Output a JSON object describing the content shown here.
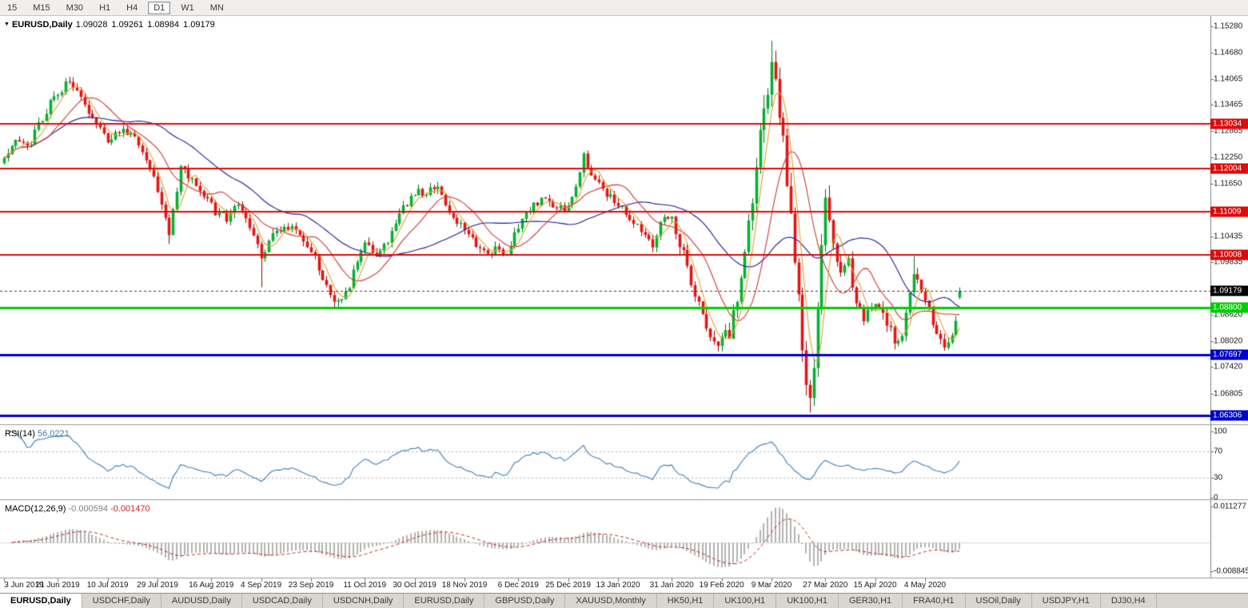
{
  "ui": {
    "toolbar": {
      "items": [
        "15",
        "M15",
        "M30",
        "H1",
        "H4",
        "D1",
        "W1",
        "MN"
      ],
      "active_index": 5
    },
    "tabs": {
      "items": [
        "EURUSD,Daily",
        "USDCHF,Daily",
        "AUDUSD,Daily",
        "USDCAD,Daily",
        "USDCNH,Daily",
        "EURUSD,Daily",
        "GBPUSD,Daily",
        "XAUUSD,Monthly",
        "HK50,H1",
        "UK100,H1",
        "UK100,H1",
        "GER30,H1",
        "FRA40,H1",
        "USOil,Daily",
        "USDJPY,H1",
        "DJ30,H4"
      ],
      "active_index": 0
    }
  },
  "chart_data": {
    "type": "candlestick",
    "title": {
      "marker": "▼",
      "symbol": "EURUSD,Daily",
      "open": "1.09028",
      "high": "1.09261",
      "low": "1.08984",
      "close": "1.09179"
    },
    "main_price_range": {
      "top": 1.1552,
      "bottom": 1.06102
    },
    "y_axis_labels": [
      "1.15280",
      "1.14680",
      "1.14065",
      "1.13465",
      "1.12865",
      "1.12250",
      "1.11650",
      "1.10435",
      "1.09835",
      "1.08620",
      "1.08020",
      "1.07420",
      "1.06805"
    ],
    "x_axis_labels": [
      {
        "bar": 0,
        "label": "3 Jun 2019"
      },
      {
        "bar": 14,
        "label": "21 Jun 2019"
      },
      {
        "bar": 27,
        "label": "10 Jul 2019"
      },
      {
        "bar": 40,
        "label": "29 Jul 2019"
      },
      {
        "bar": 54,
        "label": "16 Aug 2019"
      },
      {
        "bar": 67,
        "label": "4 Sep 2019"
      },
      {
        "bar": 80,
        "label": "23 Sep 2019"
      },
      {
        "bar": 94,
        "label": "11 Oct 2019"
      },
      {
        "bar": 107,
        "label": "30 Oct 2019"
      },
      {
        "bar": 120,
        "label": "18 Nov 2019"
      },
      {
        "bar": 134,
        "label": "6 Dec 2019"
      },
      {
        "bar": 147,
        "label": "25 Dec 2019"
      },
      {
        "bar": 160,
        "label": "13 Jan 2020"
      },
      {
        "bar": 174,
        "label": "31 Jan 2020"
      },
      {
        "bar": 187,
        "label": "19 Feb 2020"
      },
      {
        "bar": 200,
        "label": "9 Mar 2020"
      },
      {
        "bar": 214,
        "label": "27 Mar 2020"
      },
      {
        "bar": 227,
        "label": "15 Apr 2020"
      },
      {
        "bar": 240,
        "label": "4 May 2020"
      }
    ],
    "price_levels": [
      {
        "price": 1.13034,
        "label": "1.13034",
        "color": "#dd0b0b",
        "thickness": 2
      },
      {
        "price": 1.12004,
        "label": "1.12004",
        "color": "#dd0b0b",
        "thickness": 2
      },
      {
        "price": 1.11009,
        "label": "1.11009",
        "color": "#dd0b0b",
        "thickness": 2
      },
      {
        "price": 1.10008,
        "label": "1.10008",
        "color": "#dd0b0b",
        "thickness": 2
      },
      {
        "price": 1.088,
        "label": "1.08800",
        "color": "#00ce00",
        "thickness": 3
      },
      {
        "price": 1.07697,
        "label": "1.07697",
        "color": "#0000cc",
        "thickness": 3
      },
      {
        "price": 1.06306,
        "label": "1.06306",
        "color": "#0000cc",
        "thickness": 3
      }
    ],
    "current_price": {
      "price": 1.09179,
      "label": "1.09179",
      "color": "#000000"
    },
    "colors": {
      "up": "#00b22d",
      "up_border": "#00701c",
      "down": "#e81212",
      "down_border": "#8f0808"
    },
    "candles": {
      "count": 250,
      "seed": 13,
      "noise": 0.0011,
      "wick": 0.0012,
      "anchors": [
        [
          0,
          1.1228
        ],
        [
          3,
          1.1262
        ],
        [
          6,
          1.1248
        ],
        [
          9,
          1.1298
        ],
        [
          13,
          1.1372
        ],
        [
          17,
          1.14
        ],
        [
          20,
          1.1368
        ],
        [
          23,
          1.1322
        ],
        [
          27,
          1.127
        ],
        [
          30,
          1.1288
        ],
        [
          33,
          1.1282
        ],
        [
          36,
          1.124
        ],
        [
          40,
          1.1152
        ],
        [
          43,
          1.1048
        ],
        [
          46,
          1.1202
        ],
        [
          49,
          1.1172
        ],
        [
          52,
          1.1138
        ],
        [
          55,
          1.1098
        ],
        [
          58,
          1.1088
        ],
        [
          61,
          1.1118
        ],
        [
          64,
          1.1062
        ],
        [
          67,
          1.0992
        ],
        [
          70,
          1.1042
        ],
        [
          73,
          1.1072
        ],
        [
          76,
          1.1058
        ],
        [
          80,
          1.1012
        ],
        [
          83,
          1.0942
        ],
        [
          87,
          1.0888
        ],
        [
          90,
          1.0932
        ],
        [
          94,
          1.1032
        ],
        [
          97,
          1.1008
        ],
        [
          100,
          1.1038
        ],
        [
          103,
          1.1092
        ],
        [
          107,
          1.1148
        ],
        [
          110,
          1.1138
        ],
        [
          113,
          1.1162
        ],
        [
          116,
          1.1108
        ],
        [
          120,
          1.1058
        ],
        [
          123,
          1.1018
        ],
        [
          126,
          1.1008
        ],
        [
          129,
          1.1022
        ],
        [
          131,
          1.0998
        ],
        [
          134,
          1.1068
        ],
        [
          137,
          1.1102
        ],
        [
          140,
          1.1132
        ],
        [
          143,
          1.1118
        ],
        [
          147,
          1.1108
        ],
        [
          151,
          1.1228
        ],
        [
          154,
          1.1172
        ],
        [
          157,
          1.1142
        ],
        [
          160,
          1.1122
        ],
        [
          163,
          1.1088
        ],
        [
          166,
          1.1058
        ],
        [
          169,
          1.1028
        ],
        [
          172,
          1.1092
        ],
        [
          174,
          1.1082
        ],
        [
          177,
          1.1002
        ],
        [
          180,
          1.0908
        ],
        [
          183,
          1.0838
        ],
        [
          187,
          1.0798
        ],
        [
          189,
          1.0822
        ],
        [
          191,
          1.0892
        ],
        [
          193,
          1.1008
        ],
        [
          195,
          1.1122
        ],
        [
          197,
          1.1282
        ],
        [
          199,
          1.1362
        ],
        [
          200,
          1.1432
        ],
        [
          201,
          1.1378
        ],
        [
          203,
          1.1252
        ],
        [
          205,
          1.1088
        ],
        [
          207,
          1.0892
        ],
        [
          209,
          1.0702
        ],
        [
          210,
          1.0658
        ],
        [
          211,
          1.0768
        ],
        [
          212,
          1.0902
        ],
        [
          214,
          1.1128
        ],
        [
          216,
          1.1032
        ],
        [
          218,
          1.0962
        ],
        [
          220,
          1.0992
        ],
        [
          222,
          1.0888
        ],
        [
          224,
          1.0858
        ],
        [
          227,
          1.0902
        ],
        [
          229,
          1.0872
        ],
        [
          231,
          1.0832
        ],
        [
          233,
          1.079
        ],
        [
          235,
          1.0858
        ],
        [
          237,
          1.0942
        ],
        [
          238,
          1.0958
        ],
        [
          240,
          1.0898
        ],
        [
          242,
          1.0846
        ],
        [
          244,
          1.08
        ],
        [
          246,
          1.0786
        ],
        [
          248,
          1.0852
        ],
        [
          249,
          1.0918
        ]
      ],
      "vol_zones": [
        {
          "from": 176,
          "to": 194,
          "mult": 1.6
        },
        {
          "from": 195,
          "to": 215,
          "mult": 2.7
        },
        {
          "from": 216,
          "to": 249,
          "mult": 1.35
        }
      ],
      "overrides": {
        "17": {
          "h": 1.1412
        },
        "43": {
          "l": 1.1026
        },
        "67": {
          "l": 1.0926
        },
        "87": {
          "l": 1.0879
        },
        "151": {
          "h": 1.1239
        },
        "187": {
          "l": 1.0778
        },
        "200": {
          "h": 1.1495
        },
        "210": {
          "l": 1.0637
        },
        "237": {
          "h": 1.0998
        },
        "249": {
          "o": 1.09028,
          "h": 1.09261,
          "l": 1.08984,
          "c": 1.09179
        }
      }
    },
    "moving_averages": [
      {
        "name": "fast-ma",
        "period": 5,
        "color": "#e0a030"
      },
      {
        "name": "mid-ma",
        "period": 13,
        "color": "#cf3434"
      },
      {
        "name": "slow-ma",
        "period": 34,
        "color": "#1b1b8f"
      }
    ],
    "rsi": {
      "label": "RSI(14)",
      "value": "56.0221",
      "period": 14,
      "color": "#3e7db6",
      "levels": [
        70,
        30
      ],
      "axis_labels": [
        "100",
        "70",
        "30",
        "0"
      ]
    },
    "macd": {
      "label": "MACD(12,26,9)",
      "value_main": "-0.000594",
      "value_signal": "-0.001470",
      "fast": 12,
      "slow": 26,
      "signal": 9,
      "hist_color": "#b2b2b2",
      "signal_color": "#cc2222",
      "axis_labels": [
        "0.011277",
        "-0.008845"
      ],
      "range": {
        "max": 0.011277,
        "min": -0.008845
      }
    }
  }
}
